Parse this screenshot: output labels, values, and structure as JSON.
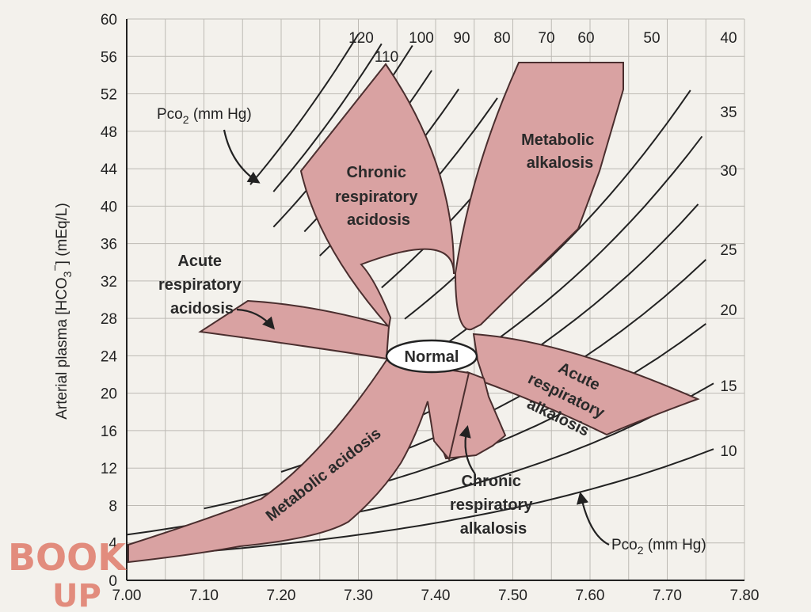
{
  "chart_data": {
    "type": "nomogram",
    "x": {
      "range": [
        7.0,
        7.8
      ],
      "ticks": [
        "7.00",
        "7.10",
        "7.20",
        "7.30",
        "7.40",
        "7.50",
        "7.60",
        "7.70",
        "7.80"
      ]
    },
    "y": {
      "range": [
        0,
        60
      ],
      "ticks": [
        "0",
        "4",
        "8",
        "12",
        "16",
        "20",
        "24",
        "28",
        "32",
        "36",
        "40",
        "44",
        "48",
        "52",
        "56",
        "60"
      ]
    },
    "ylabel_main": "Arterial plasma [HCO",
    "ylabel_sub": "3",
    "ylabel_sup": "−",
    "ylabel_end": "] (mEq/L)",
    "isobars": [
      {
        "label": "120"
      },
      {
        "label": "110"
      },
      {
        "label": "100"
      },
      {
        "label": "90"
      },
      {
        "label": "80"
      },
      {
        "label": "70"
      },
      {
        "label": "60"
      },
      {
        "label": "50"
      },
      {
        "label": "40"
      },
      {
        "label": "35"
      },
      {
        "label": "30"
      },
      {
        "label": "25"
      },
      {
        "label": "20"
      },
      {
        "label": "15"
      },
      {
        "label": "10"
      }
    ],
    "pco2_label_top": "Pco",
    "pco2_label_bottom": "Pco",
    "pco2_sub": "2",
    "pco2_unit": " (mm Hg)",
    "regions": {
      "normal": "Normal",
      "chronic_resp_acidosis": [
        "Chronic",
        "respiratory",
        "acidosis"
      ],
      "metabolic_alkalosis": [
        "Metabolic",
        "alkalosis"
      ],
      "acute_resp_acidosis": [
        "Acute",
        "respiratory",
        "acidosis"
      ],
      "acute_resp_alkalosis": [
        "Acute",
        "respiratory",
        "alkalosis"
      ],
      "metabolic_acidosis": "Metabolic acidosis",
      "chronic_resp_alkalosis": [
        "Chronic",
        "respiratory",
        "alkalosis"
      ]
    },
    "colors": {
      "region_fill": "#d9a2a2",
      "region_stroke": "#4a2e2e",
      "line": "#222222",
      "grid": "#bdbab4",
      "watermark": "#e07b6a"
    }
  },
  "watermark": {
    "line1": "BOOK",
    "line2": "UP"
  }
}
